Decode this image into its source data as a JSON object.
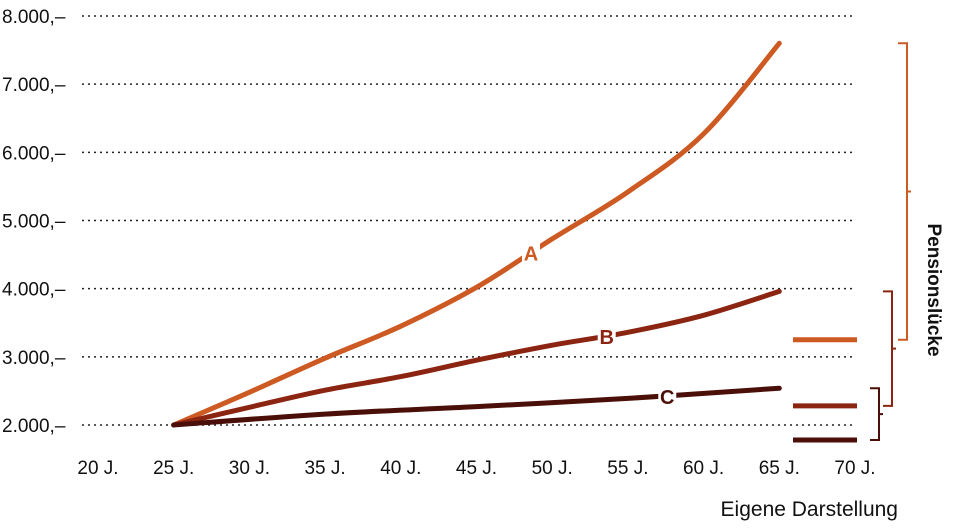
{
  "chart_data": {
    "type": "line",
    "y_ticks": [
      {
        "value": 2000,
        "label": "2.000,–"
      },
      {
        "value": 3000,
        "label": "3.000,–"
      },
      {
        "value": 4000,
        "label": "4.000,–"
      },
      {
        "value": 5000,
        "label": "5.000,–"
      },
      {
        "value": 6000,
        "label": "6.000,–"
      },
      {
        "value": 7000,
        "label": "7.000,–"
      },
      {
        "value": 8000,
        "label": "8.000,–"
      }
    ],
    "x_ticks": [
      {
        "value": 20,
        "label": "20 J."
      },
      {
        "value": 25,
        "label": "25 J."
      },
      {
        "value": 30,
        "label": "30 J."
      },
      {
        "value": 35,
        "label": "35 J."
      },
      {
        "value": 40,
        "label": "40 J."
      },
      {
        "value": 45,
        "label": "45 J."
      },
      {
        "value": 50,
        "label": "50 J."
      },
      {
        "value": 55,
        "label": "55 J."
      },
      {
        "value": 60,
        "label": "60 J."
      },
      {
        "value": 65,
        "label": "65 J."
      },
      {
        "value": 70,
        "label": "70 J."
      }
    ],
    "xlim": [
      20,
      70
    ],
    "ylim": [
      2000,
      8000
    ],
    "grid": "horizontal-dotted",
    "series": [
      {
        "name": "A",
        "color": "#cc5a22",
        "x": [
          25,
          30,
          35,
          40,
          45,
          50,
          55,
          60,
          65
        ],
        "y": [
          2000,
          2480,
          2980,
          3450,
          4020,
          4730,
          5420,
          6270,
          7600
        ]
      },
      {
        "name": "B",
        "color": "#8b2512",
        "x": [
          25,
          30,
          35,
          40,
          45,
          50,
          55,
          60,
          65
        ],
        "y": [
          2000,
          2260,
          2510,
          2710,
          2950,
          3170,
          3360,
          3610,
          3960
        ]
      },
      {
        "name": "C",
        "color": "#4a0f08",
        "x": [
          25,
          35,
          45,
          55,
          65
        ],
        "y": [
          2000,
          2160,
          2270,
          2390,
          2540
        ]
      }
    ],
    "pension_levels": [
      {
        "series": "A",
        "value": 3250,
        "color": "#cc5a22"
      },
      {
        "series": "B",
        "value": 2280,
        "color": "#8b2512"
      },
      {
        "series": "C",
        "value": 1780,
        "color": "#4a0f08"
      }
    ],
    "gap_label": "Pensionslücke",
    "source_note": "Eigene Darstellung"
  }
}
